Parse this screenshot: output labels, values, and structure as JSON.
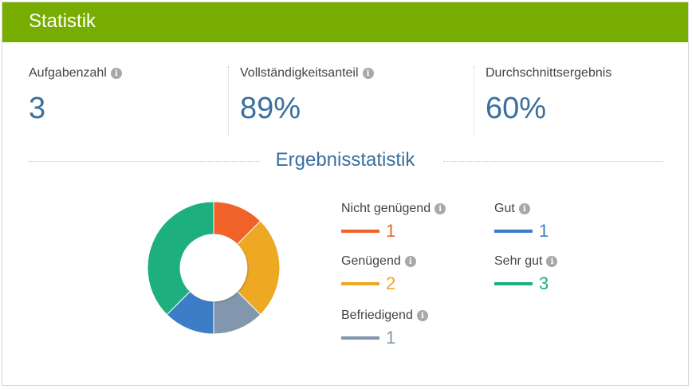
{
  "header": {
    "title": "Statistik"
  },
  "stats": [
    {
      "label": "Aufgabenzahl",
      "value": "3"
    },
    {
      "label": "Vollständigkeitsanteil",
      "value": "89%"
    },
    {
      "label": "Durchschnittsergebnis",
      "value": "60%"
    }
  ],
  "section": {
    "title": "Ergebnisstatistik"
  },
  "info_icon_glyph": "i",
  "legend": [
    {
      "label": "Nicht genügend",
      "count": "1",
      "color": "#f06227"
    },
    {
      "label": "Genügend",
      "count": "2",
      "color": "#eda824"
    },
    {
      "label": "Befriedigend",
      "count": "1",
      "color": "#8296ad"
    },
    {
      "label": "Gut",
      "count": "1",
      "color": "#3d7dc8"
    },
    {
      "label": "Sehr gut",
      "count": "3",
      "color": "#1db07e"
    }
  ]
}
